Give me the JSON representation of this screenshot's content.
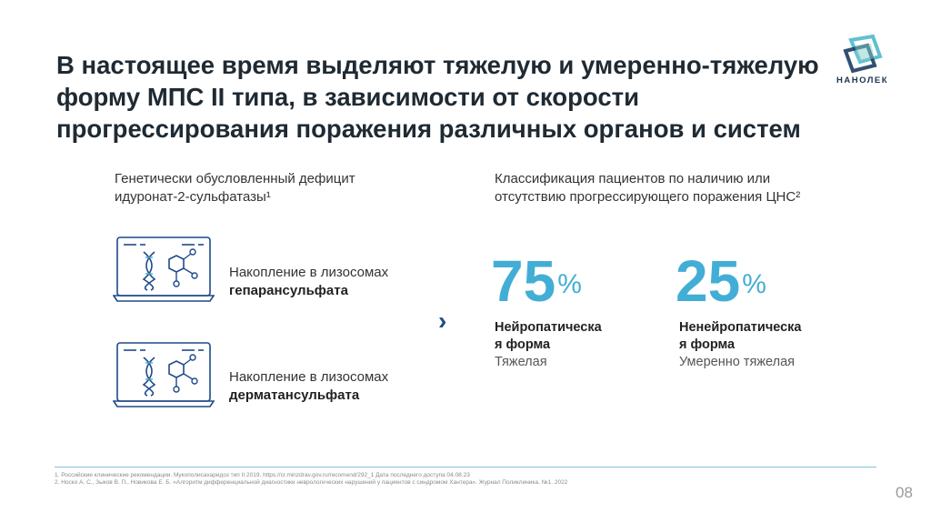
{
  "header": {
    "title": "В настоящее время выделяют тяжелую и умеренно-тяжелую форму МПС II типа, в зависимости от скорости прогрессирования поражения различных органов и систем",
    "logo_text": "НАНОЛЕК"
  },
  "left": {
    "heading_line1": "Генетически обусловленный дефицит",
    "heading_line2": "идуронат-2-сульфатазы¹",
    "items": [
      {
        "prefix": "Накопление в лизосомах",
        "substance": "гепарансульфата"
      },
      {
        "prefix": "Накопление в лизосомах",
        "substance": "дерматансульфата"
      }
    ]
  },
  "arrow": "›",
  "right": {
    "heading_line1": "Классификация пациентов по наличию или",
    "heading_line2": "отсутствию прогрессирующего поражения ЦНС²",
    "stats": [
      {
        "value": "75",
        "unit": "%",
        "label_line1": "Нейропатическа",
        "label_line2": "я форма",
        "severity": "Тяжелая"
      },
      {
        "value": "25",
        "unit": "%",
        "label_line1": "Ненейропатическа",
        "label_line2": "я форма",
        "severity": "Умеренно тяжелая"
      }
    ]
  },
  "footnotes": [
    "1. Российские клинические рекомендации. Мукополисахаридоз тип II 2019. https://cr.minzdrav.gov.ru/recomend/292_1 Дата последнего доступа 04.08.23",
    "2. Носко А. С., Зыков В. П., Новикова Е. Б. «Алгоритм дифференциальной диагностики неврологических нарушений у пациентов с синдромом Хантера». Журнал Поликлиника. №1. 2022"
  ],
  "page_number": "08",
  "colors": {
    "accent": "#43aed5",
    "dark_blue": "#1e4a8a",
    "title": "#1f2a33"
  }
}
